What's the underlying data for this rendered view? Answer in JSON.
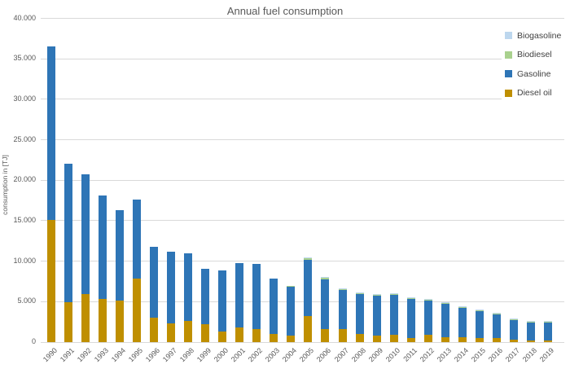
{
  "colors": {
    "background": "#FFFFFF",
    "grid": "#D9D9D9",
    "axis": "#D9D9D9",
    "text": "#595959",
    "legend_text": "#404040"
  },
  "chart_data": {
    "type": "bar",
    "stacked": true,
    "title": "Annual fuel consumption",
    "xlabel": "",
    "ylabel": "consumption in [TJ]",
    "ylim": [
      0,
      40000
    ],
    "y_tick_step": 5000,
    "y_tick_labels": [
      "0",
      "5.000",
      "10.000",
      "15.000",
      "20.000",
      "25.000",
      "30.000",
      "35.000",
      "40.000"
    ],
    "grid": true,
    "legend_position": "top-right",
    "legend_order": [
      "Biogasoline",
      "Biodiesel",
      "Gasoline",
      "Diesel oil"
    ],
    "categories": [
      "1990",
      "1991",
      "1992",
      "1993",
      "1994",
      "1995",
      "1996",
      "1997",
      "1998",
      "1999",
      "2000",
      "2001",
      "2002",
      "2003",
      "2004",
      "2005",
      "2006",
      "2007",
      "2008",
      "2009",
      "2010",
      "2011",
      "2012",
      "2013",
      "2014",
      "2015",
      "2016",
      "2017",
      "2018",
      "2019"
    ],
    "series": [
      {
        "name": "Diesel oil",
        "color": "#BF8F00",
        "values": [
          15000,
          4900,
          5900,
          5300,
          5100,
          7800,
          3000,
          2300,
          2600,
          2200,
          1300,
          1750,
          1550,
          950,
          800,
          3150,
          1550,
          1550,
          950,
          800,
          820,
          500,
          850,
          550,
          600,
          450,
          500,
          250,
          150,
          120
        ]
      },
      {
        "name": "Gasoline",
        "color": "#2E75B6",
        "values": [
          21500,
          17100,
          14800,
          12800,
          11200,
          9800,
          8700,
          8800,
          8300,
          6800,
          7500,
          7950,
          8100,
          6850,
          6000,
          6950,
          6150,
          4800,
          4950,
          4900,
          5000,
          4800,
          4250,
          4150,
          3600,
          3350,
          2900,
          2500,
          2300,
          2280
        ]
      },
      {
        "name": "Biodiesel",
        "color": "#A9D18E",
        "values": [
          0,
          0,
          0,
          0,
          0,
          0,
          0,
          0,
          0,
          0,
          0,
          0,
          0,
          0,
          100,
          200,
          200,
          200,
          150,
          100,
          100,
          50,
          100,
          50,
          50,
          50,
          50,
          50,
          50,
          50
        ]
      },
      {
        "name": "Biogasoline",
        "color": "#BDD7EE",
        "values": [
          0,
          0,
          0,
          0,
          0,
          0,
          0,
          0,
          0,
          0,
          0,
          0,
          0,
          0,
          0,
          100,
          100,
          50,
          50,
          100,
          100,
          150,
          100,
          100,
          100,
          100,
          100,
          100,
          100,
          100
        ]
      }
    ]
  }
}
